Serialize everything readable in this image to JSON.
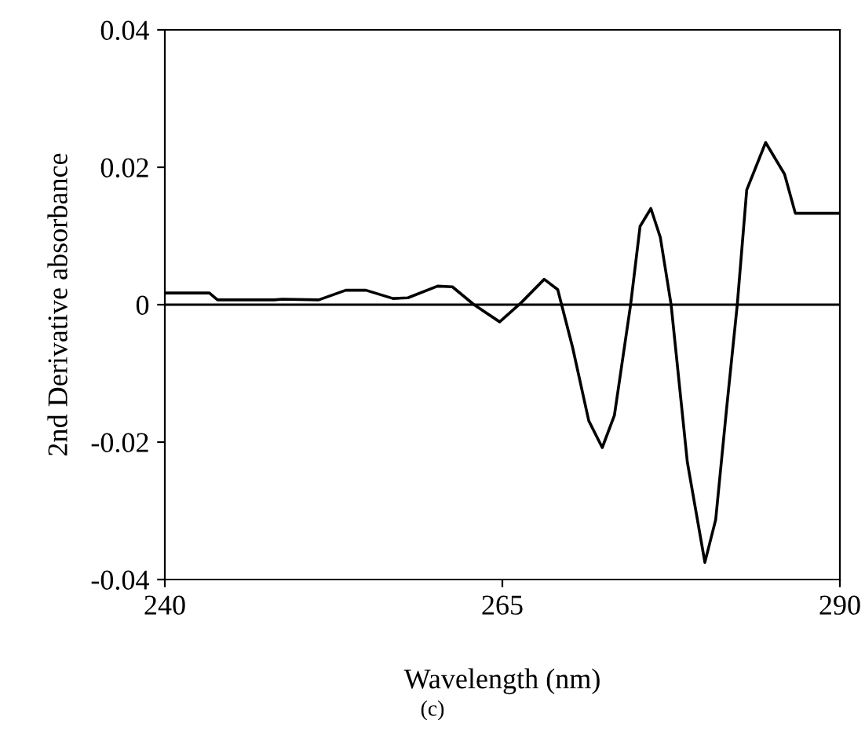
{
  "chart_data": {
    "type": "line",
    "xlabel": "Wavelength (nm)",
    "ylabel": "2nd Derivative absorbance",
    "annotations": [
      "(c)"
    ],
    "x": [
      240,
      243.3,
      243.9,
      248.1,
      248.7,
      251.4,
      253.4,
      254.9,
      256.9,
      258.0,
      260.2,
      261.3,
      262.9,
      264.8,
      266.4,
      268.1,
      269.1,
      270.2,
      271.4,
      272.4,
      273.3,
      274.5,
      275.2,
      276.0,
      276.7,
      277.5,
      278.7,
      280.0,
      280.8,
      281.6,
      282.4,
      283.1,
      284.5,
      285.9,
      286.7,
      290
    ],
    "series": [
      {
        "color": "#000000",
        "values": [
          0.0017,
          0.0017,
          0.0007,
          0.0007,
          0.0008,
          0.0007,
          0.0021,
          0.0021,
          0.0009,
          0.001,
          0.0027,
          0.0026,
          0.0,
          -0.0025,
          0.0003,
          0.0037,
          0.0022,
          -0.0062,
          -0.0169,
          -0.0208,
          -0.0161,
          0.0,
          0.0114,
          0.014,
          0.0098,
          0.0,
          -0.0229,
          -0.0375,
          -0.0313,
          -0.0153,
          0.0,
          0.0167,
          0.0236,
          0.019,
          0.0133,
          0.0133
        ]
      }
    ],
    "xlim": [
      240,
      290
    ],
    "ylim": [
      -0.04,
      0.04
    ],
    "xticks": [
      240,
      265,
      290
    ],
    "yticks": [
      -0.04,
      -0.02,
      0,
      0.02,
      0.04
    ],
    "ref_lines": [
      {
        "axis": "y",
        "value": 0,
        "color": "#000000"
      }
    ],
    "grid": false,
    "legend": false,
    "marker": "none",
    "line_style": "solid"
  }
}
